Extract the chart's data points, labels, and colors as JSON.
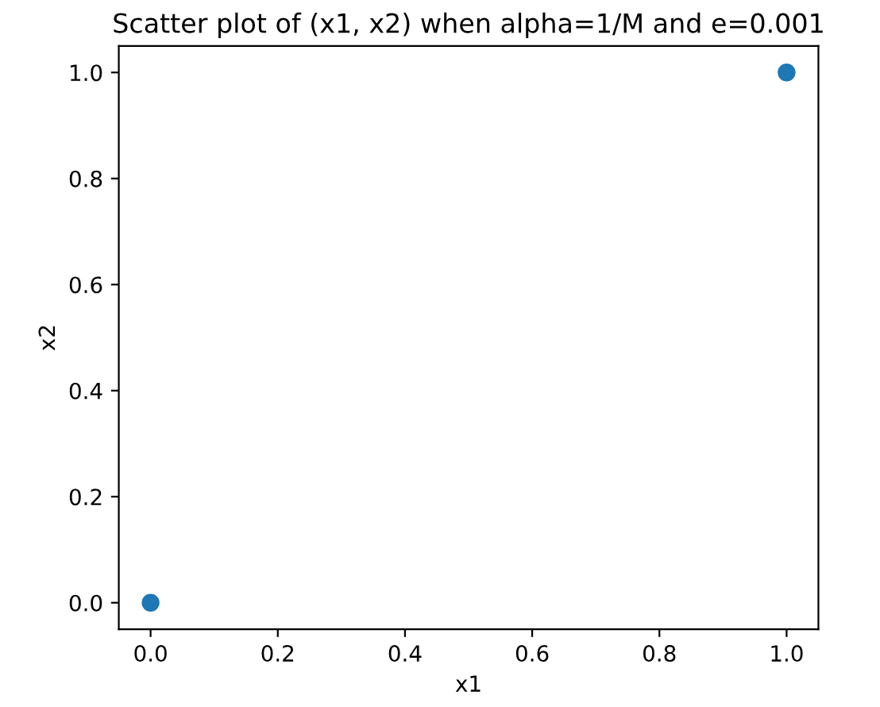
{
  "chart_data": {
    "type": "scatter",
    "title": "Scatter plot of (x1, x2) when alpha=1/M and e=0.001",
    "xlabel": "x1",
    "ylabel": "x2",
    "x": [
      0,
      1
    ],
    "series": [
      {
        "color": "#1f77b4",
        "values": [
          0,
          1
        ]
      }
    ],
    "xlim": [
      -0.05,
      1.05
    ],
    "ylim": [
      -0.05,
      1.05
    ],
    "xticks": [
      {
        "value": 0,
        "label": "0.0"
      },
      0.2,
      0.4,
      0.6,
      0.8,
      {
        "value": 1,
        "label": "1.0"
      }
    ],
    "yticks": [
      {
        "value": 0,
        "label": "0.0"
      },
      0.2,
      0.4,
      0.6,
      0.8,
      {
        "value": 1,
        "label": "1.0"
      }
    ],
    "marker": "circle",
    "grid": false,
    "legend": false
  }
}
